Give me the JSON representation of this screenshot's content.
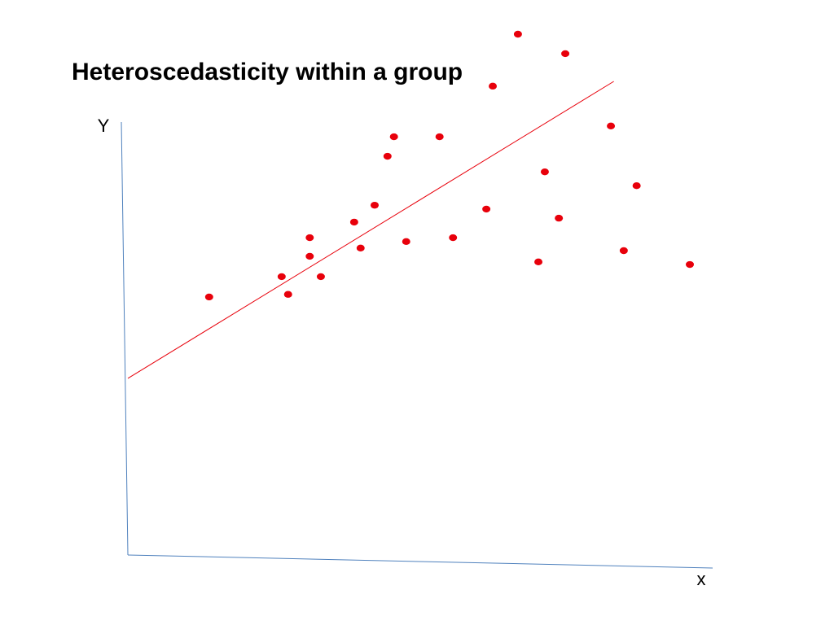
{
  "chart_data": {
    "type": "scatter",
    "title": "Heteroscedasticity within a group",
    "y_label": "Y",
    "x_label": "x",
    "xlim": [
      0,
      100
    ],
    "ylim": [
      0,
      130
    ],
    "color": "#e8000b",
    "x": [
      66.7,
      74.8,
      62.4,
      82.6,
      45.5,
      53.3,
      44.4,
      71.3,
      87.0,
      42.2,
      61.3,
      38.7,
      73.7,
      31.1,
      55.6,
      47.6,
      39.8,
      84.8,
      31.1,
      70.2,
      96.1,
      26.3,
      33.0,
      13.9,
      27.4
    ],
    "values": [
      120.3,
      115.8,
      108.3,
      99.1,
      96.6,
      96.6,
      92.1,
      88.5,
      85.3,
      80.8,
      79.9,
      76.9,
      77.8,
      73.3,
      73.3,
      72.4,
      70.9,
      70.3,
      69.0,
      67.7,
      67.1,
      64.3,
      64.3,
      59.6,
      60.2
    ],
    "fit_line": {
      "color": "#e8000b",
      "x": [
        0,
        83.1
      ],
      "values": [
        40.8,
        109.4
      ]
    }
  }
}
